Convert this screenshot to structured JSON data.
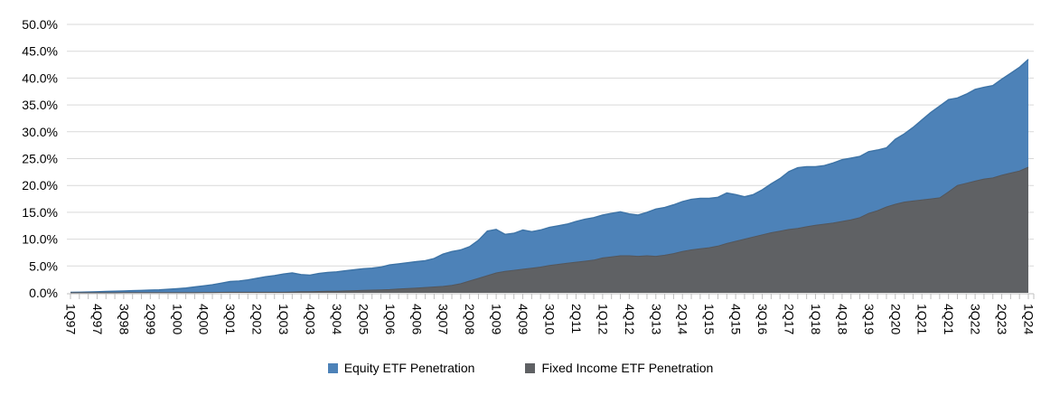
{
  "page": {
    "background": "#ffffff"
  },
  "chart_data": {
    "type": "area",
    "title": "",
    "stacked": false,
    "overlapping": true,
    "grid": true,
    "legend_position": "bottom",
    "gridline_color": "#D9D9D9",
    "axis_color": "#BFBFBF",
    "label_color": "#000000",
    "y_axis": {
      "min": 0,
      "max": 50,
      "step": 5,
      "format": "percent",
      "tick_labels": [
        "50.0%",
        "45.0%",
        "40.0%",
        "35.0%",
        "30.0%",
        "25.0%",
        "20.0%",
        "15.0%",
        "10.0%",
        "5.0%",
        "0.0%"
      ]
    },
    "x": [
      "1Q97",
      "2Q97",
      "3Q97",
      "4Q97",
      "1Q98",
      "2Q98",
      "3Q98",
      "4Q98",
      "1Q99",
      "2Q99",
      "3Q99",
      "4Q99",
      "1Q00",
      "2Q00",
      "3Q00",
      "4Q00",
      "1Q01",
      "2Q01",
      "3Q01",
      "4Q01",
      "1Q02",
      "2Q02",
      "3Q02",
      "4Q02",
      "1Q03",
      "2Q03",
      "3Q03",
      "4Q03",
      "1Q04",
      "2Q04",
      "3Q04",
      "4Q04",
      "1Q05",
      "2Q05",
      "3Q05",
      "4Q05",
      "1Q06",
      "2Q06",
      "3Q06",
      "4Q06",
      "1Q07",
      "2Q07",
      "3Q07",
      "4Q07",
      "1Q08",
      "2Q08",
      "3Q08",
      "4Q08",
      "1Q09",
      "2Q09",
      "3Q09",
      "4Q09",
      "1Q10",
      "2Q10",
      "3Q10",
      "4Q10",
      "1Q11",
      "2Q11",
      "3Q11",
      "4Q11",
      "1Q12",
      "2Q12",
      "3Q12",
      "4Q12",
      "1Q13",
      "2Q13",
      "3Q13",
      "4Q13",
      "1Q14",
      "2Q14",
      "3Q14",
      "4Q14",
      "1Q15",
      "2Q15",
      "3Q15",
      "4Q15",
      "1Q16",
      "2Q16",
      "3Q16",
      "4Q16",
      "1Q17",
      "2Q17",
      "3Q17",
      "4Q17",
      "1Q18",
      "2Q18",
      "3Q18",
      "4Q18",
      "1Q19",
      "2Q19",
      "3Q19",
      "4Q19",
      "1Q20",
      "2Q20",
      "3Q20",
      "4Q20",
      "1Q21",
      "2Q21",
      "3Q21",
      "4Q21",
      "1Q22",
      "2Q22",
      "3Q22",
      "4Q22",
      "1Q23",
      "2Q23",
      "3Q23",
      "4Q23",
      "1Q24"
    ],
    "x_tick_labels": [
      "1Q97",
      "4Q97",
      "3Q98",
      "2Q99",
      "1Q00",
      "4Q00",
      "3Q01",
      "2Q02",
      "1Q03",
      "4Q03",
      "3Q04",
      "2Q05",
      "1Q06",
      "4Q06",
      "3Q07",
      "2Q08",
      "1Q09",
      "4Q09",
      "3Q10",
      "2Q11",
      "1Q12",
      "4Q12",
      "3Q13",
      "2Q14",
      "1Q15",
      "4Q15",
      "3Q16",
      "2Q17",
      "1Q18",
      "4Q18",
      "3Q19",
      "2Q20",
      "1Q21",
      "4Q21",
      "3Q22",
      "2Q23",
      "1Q24"
    ],
    "x_label_every": 3,
    "series": [
      {
        "name": "Equity ETF Penetration",
        "color": "#4D82B8",
        "edge_color": "#3D73A6",
        "values": [
          0.1,
          0.12,
          0.15,
          0.2,
          0.25,
          0.3,
          0.35,
          0.4,
          0.45,
          0.5,
          0.55,
          0.65,
          0.75,
          0.9,
          1.1,
          1.3,
          1.5,
          1.8,
          2.1,
          2.2,
          2.4,
          2.7,
          3.0,
          3.2,
          3.5,
          3.7,
          3.4,
          3.3,
          3.6,
          3.8,
          3.9,
          4.1,
          4.3,
          4.5,
          4.6,
          4.8,
          5.2,
          5.4,
          5.6,
          5.8,
          6.0,
          6.4,
          7.2,
          7.7,
          8.0,
          8.6,
          9.8,
          11.5,
          11.8,
          10.9,
          11.1,
          11.7,
          11.4,
          11.7,
          12.2,
          12.5,
          12.8,
          13.3,
          13.7,
          14.0,
          14.5,
          14.8,
          15.1,
          14.7,
          14.5,
          15.0,
          15.6,
          15.9,
          16.4,
          17.0,
          17.4,
          17.6,
          17.6,
          17.8,
          18.6,
          18.3,
          17.9,
          18.3,
          19.2,
          20.3,
          21.3,
          22.6,
          23.3,
          23.5,
          23.5,
          23.7,
          24.2,
          24.8,
          25.1,
          25.4,
          26.3,
          26.6,
          27.0,
          28.6,
          29.6,
          30.8,
          32.2,
          33.6,
          34.8,
          36.0,
          36.3,
          37.0,
          37.9,
          38.3,
          38.6,
          39.8,
          40.9,
          42.0,
          43.5
        ]
      },
      {
        "name": "Fixed Income ETF Penetration",
        "color": "#5F6164",
        "edge_color": "#54565A",
        "values": [
          0.02,
          0.02,
          0.02,
          0.02,
          0.02,
          0.02,
          0.03,
          0.03,
          0.03,
          0.03,
          0.04,
          0.05,
          0.05,
          0.05,
          0.05,
          0.06,
          0.06,
          0.08,
          0.1,
          0.1,
          0.1,
          0.1,
          0.1,
          0.1,
          0.1,
          0.15,
          0.2,
          0.2,
          0.25,
          0.3,
          0.3,
          0.35,
          0.4,
          0.45,
          0.5,
          0.55,
          0.6,
          0.7,
          0.8,
          0.9,
          1.0,
          1.1,
          1.2,
          1.4,
          1.7,
          2.2,
          2.7,
          3.2,
          3.7,
          4.0,
          4.2,
          4.4,
          4.6,
          4.8,
          5.1,
          5.3,
          5.5,
          5.7,
          5.9,
          6.1,
          6.5,
          6.7,
          6.9,
          6.9,
          6.8,
          6.9,
          6.8,
          7.0,
          7.3,
          7.7,
          8.0,
          8.2,
          8.4,
          8.7,
          9.2,
          9.6,
          10.0,
          10.4,
          10.8,
          11.2,
          11.5,
          11.8,
          12.0,
          12.3,
          12.6,
          12.8,
          13.0,
          13.3,
          13.6,
          14.0,
          14.8,
          15.3,
          16.0,
          16.5,
          16.9,
          17.1,
          17.3,
          17.5,
          17.7,
          18.8,
          20.0,
          20.4,
          20.8,
          21.2,
          21.4,
          21.9,
          22.3,
          22.7,
          23.4
        ]
      }
    ]
  },
  "legend": {
    "equity_label": "Equity ETF Penetration",
    "fixed_income_label": "Fixed Income ETF Penetration"
  }
}
